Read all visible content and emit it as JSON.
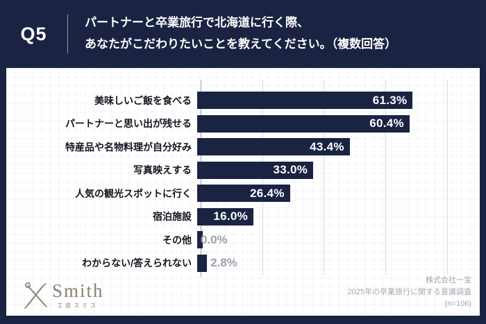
{
  "header": {
    "badge": "Q5",
    "question_line1": "パートナーと卒業旅行で北海道に行く際、",
    "question_line2": "あなたがこだわりたいことを教えてください。（複数回答）"
  },
  "chart_data": {
    "type": "bar",
    "orientation": "horizontal",
    "categories": [
      "美味しいご飯を食べる",
      "パートナーと思い出が残せる",
      "特産品や名物料理が自分好み",
      "写真映えする",
      "人気の観光スポットに行く",
      "宿泊施設",
      "その他",
      "わからない/答えられない"
    ],
    "values": [
      61.3,
      60.4,
      43.4,
      33.0,
      26.4,
      16.0,
      0.0,
      2.8
    ],
    "value_labels": [
      "61.3%",
      "60.4%",
      "43.4%",
      "33.0%",
      "26.4%",
      "16.0%",
      "0.0%",
      "2.8%"
    ],
    "title": "",
    "xlabel": "",
    "ylabel": "",
    "xlim": [
      0,
      77
    ],
    "gridlines": [
      17.5,
      35,
      52.5,
      70
    ],
    "grid": true,
    "legend": "none",
    "bar_color": "#1a2342",
    "inside_label_color": "#ffffff",
    "outside_label_color": "#9aa0ab"
  },
  "footer": {
    "logo": {
      "name": "Smith",
      "subtitle": "工房スミス",
      "color": "#8b8170"
    },
    "credit_lines": [
      "株式会社一宝",
      "2025年の卒業旅行に関する意識調査",
      "(n=106)"
    ]
  },
  "colors": {
    "navy": "#1a2342",
    "panel": "#ffffff",
    "axis": "#9aa0a8",
    "gridline": "#d5d9de",
    "muted_text": "#a2a7b0"
  }
}
